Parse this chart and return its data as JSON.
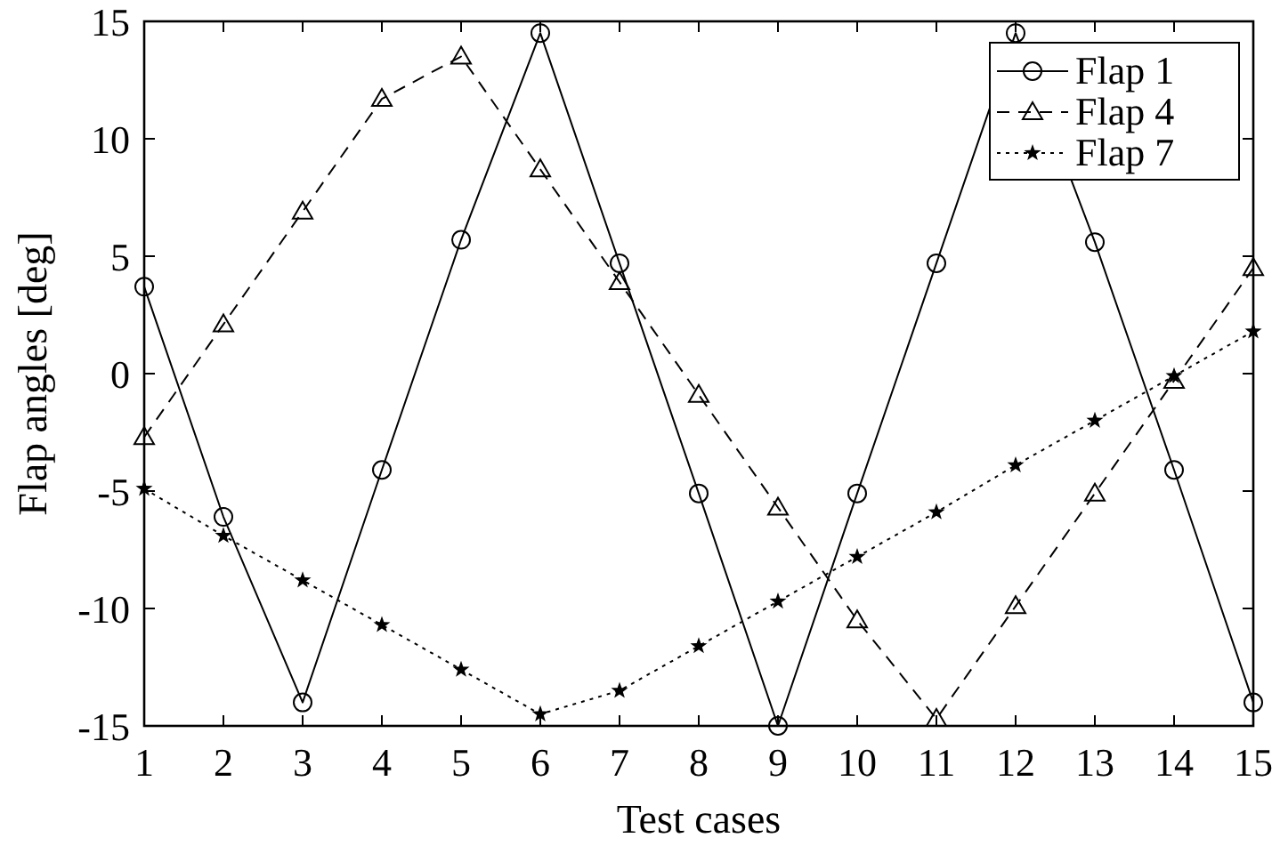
{
  "chart_data": {
    "type": "line",
    "xlabel": "Test cases",
    "ylabel": "Flap angles [deg]",
    "x": [
      1,
      2,
      3,
      4,
      5,
      6,
      7,
      8,
      9,
      10,
      11,
      12,
      13,
      14,
      15
    ],
    "xlim": [
      1,
      15
    ],
    "xticks": [
      1,
      2,
      3,
      4,
      5,
      6,
      7,
      8,
      9,
      10,
      11,
      12,
      13,
      14,
      15
    ],
    "ylim": [
      -15,
      15
    ],
    "yticks": [
      -15,
      -10,
      -5,
      0,
      5,
      10,
      15
    ],
    "grid": false,
    "legend": "top right",
    "series": [
      {
        "name": "Flap 1",
        "color": "#000000",
        "marker": "circle",
        "line_style": "solid",
        "values": [
          3.7,
          -6.1,
          -14,
          -4.1,
          5.7,
          14.5,
          4.7,
          -5.1,
          -15,
          -5.1,
          4.7,
          14.5,
          5.6,
          -4.1,
          -14
        ]
      },
      {
        "name": "Flap 4",
        "color": "#000000",
        "marker": "triangle",
        "line_style": "dashed",
        "values": [
          -2.7,
          2.1,
          6.9,
          11.7,
          13.5,
          8.7,
          3.9,
          -0.9,
          -5.7,
          -10.5,
          -14.7,
          -9.9,
          -5.1,
          -0.3,
          4.5
        ]
      },
      {
        "name": "Flap 7",
        "color": "#000000",
        "marker": "star",
        "line_style": "dotted",
        "values": [
          -4.9,
          -6.9,
          -8.8,
          -10.7,
          -12.6,
          -14.5,
          -13.5,
          -11.6,
          -9.7,
          -7.8,
          -5.9,
          -3.9,
          -2.0,
          -0.1,
          1.8
        ]
      }
    ]
  }
}
